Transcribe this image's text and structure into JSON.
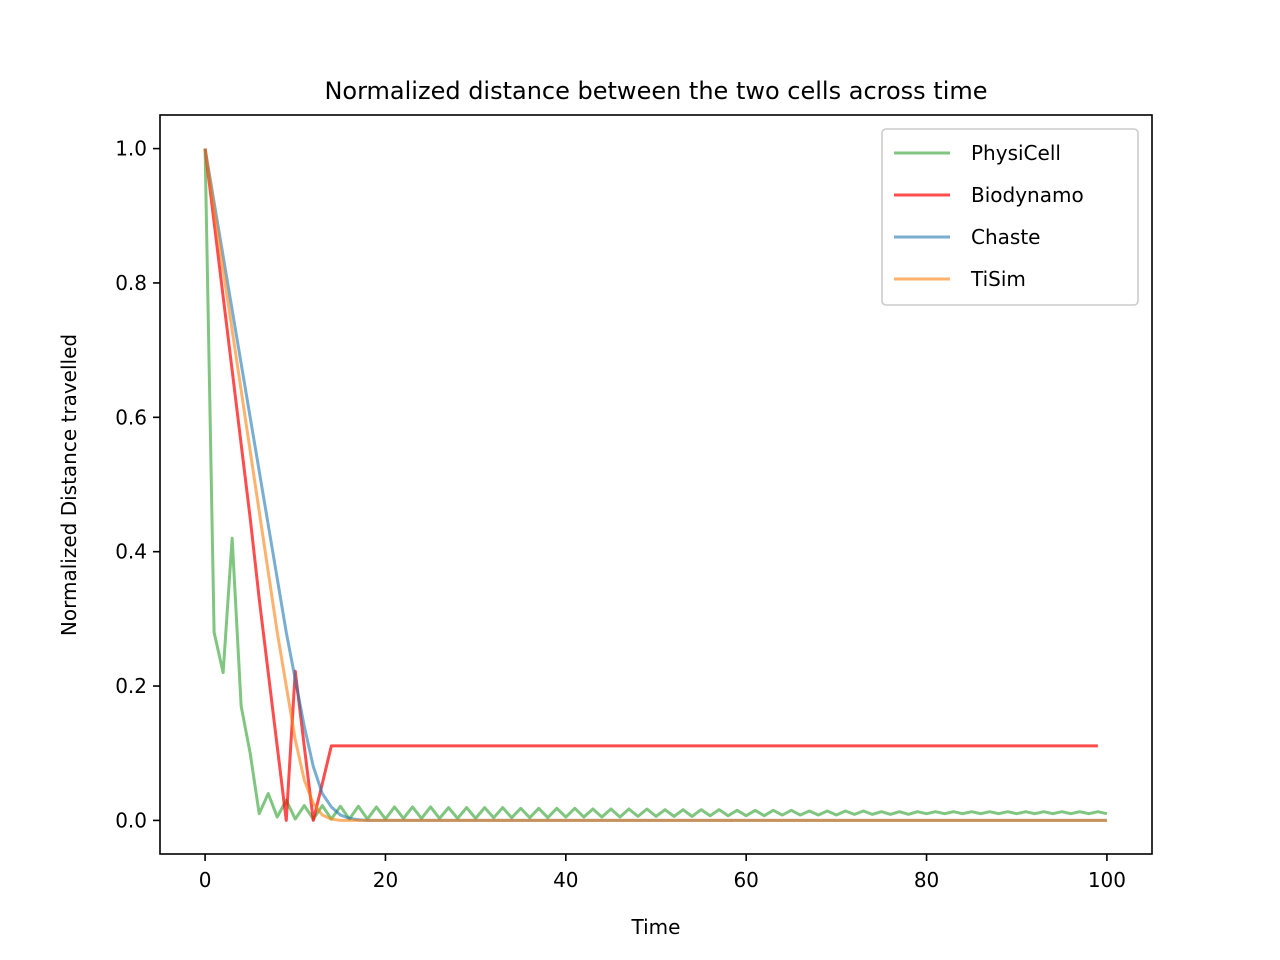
{
  "chart_data": {
    "type": "line",
    "title": "Normalized distance between the two cells across time",
    "xlabel": "Time",
    "ylabel": "Normalized Distance travelled",
    "xlim": [
      -5,
      105
    ],
    "ylim": [
      -0.05,
      1.05
    ],
    "xticks": [
      0,
      20,
      40,
      60,
      80,
      100
    ],
    "yticks": [
      0.0,
      0.2,
      0.4,
      0.6,
      0.8,
      1.0
    ],
    "xtick_labels": [
      "0",
      "20",
      "40",
      "60",
      "80",
      "100"
    ],
    "ytick_labels": [
      "0.0",
      "0.2",
      "0.4",
      "0.6",
      "0.8",
      "1.0"
    ],
    "grid": false,
    "legend_position": "top-right",
    "series": [
      {
        "name": "PhysiCell",
        "color": "#2ca02c",
        "opacity": 0.6,
        "x": [
          0,
          1,
          2,
          3,
          4,
          5,
          6,
          7,
          8,
          9,
          10,
          11,
          12,
          13,
          14,
          15,
          16,
          17,
          18,
          19,
          20,
          21,
          22,
          23,
          24,
          25,
          26,
          27,
          28,
          29,
          30,
          31,
          32,
          33,
          34,
          35,
          36,
          37,
          38,
          39,
          40,
          41,
          42,
          43,
          44,
          45,
          46,
          47,
          48,
          49,
          50,
          51,
          52,
          53,
          54,
          55,
          56,
          57,
          58,
          59,
          60,
          61,
          62,
          63,
          64,
          65,
          66,
          67,
          68,
          69,
          70,
          71,
          72,
          73,
          74,
          75,
          76,
          77,
          78,
          79,
          80,
          81,
          82,
          83,
          84,
          85,
          86,
          87,
          88,
          89,
          90,
          91,
          92,
          93,
          94,
          95,
          96,
          97,
          98,
          99,
          100
        ],
        "y": [
          1.0,
          0.28,
          0.22,
          0.42,
          0.17,
          0.1,
          0.01,
          0.04,
          0.005,
          0.03,
          0.002,
          0.022,
          0.002,
          0.022,
          0.002,
          0.021,
          0.002,
          0.021,
          0.002,
          0.02,
          0.002,
          0.02,
          0.003,
          0.02,
          0.003,
          0.02,
          0.003,
          0.019,
          0.003,
          0.019,
          0.003,
          0.019,
          0.004,
          0.019,
          0.004,
          0.018,
          0.004,
          0.018,
          0.004,
          0.018,
          0.005,
          0.018,
          0.005,
          0.017,
          0.005,
          0.017,
          0.005,
          0.017,
          0.006,
          0.017,
          0.006,
          0.016,
          0.006,
          0.016,
          0.006,
          0.016,
          0.007,
          0.016,
          0.007,
          0.015,
          0.007,
          0.015,
          0.007,
          0.015,
          0.008,
          0.015,
          0.008,
          0.014,
          0.008,
          0.014,
          0.008,
          0.014,
          0.009,
          0.014,
          0.009,
          0.013,
          0.009,
          0.013,
          0.009,
          0.013,
          0.01,
          0.013,
          0.01,
          0.013,
          0.01,
          0.013,
          0.01,
          0.013,
          0.01,
          0.013,
          0.01,
          0.013,
          0.01,
          0.013,
          0.01,
          0.013,
          0.01,
          0.013,
          0.01,
          0.013,
          0.01
        ]
      },
      {
        "name": "Biodynamo",
        "color": "#ff0000",
        "opacity": 0.7,
        "x": [
          0,
          1,
          2,
          3,
          4,
          5,
          6,
          7,
          8,
          9,
          10,
          11,
          12,
          13,
          14,
          15,
          20,
          30,
          40,
          50,
          60,
          70,
          80,
          90,
          99
        ],
        "y": [
          1.0,
          0.89,
          0.78,
          0.67,
          0.56,
          0.45,
          0.33,
          0.22,
          0.11,
          0.0,
          0.222,
          0.11,
          0.0,
          0.055,
          0.111,
          0.111,
          0.111,
          0.111,
          0.111,
          0.111,
          0.111,
          0.111,
          0.111,
          0.111,
          0.111
        ]
      },
      {
        "name": "Chaste",
        "color": "#1f77b4",
        "opacity": 0.6,
        "x": [
          0,
          1,
          2,
          3,
          4,
          5,
          6,
          7,
          8,
          9,
          10,
          11,
          12,
          13,
          14,
          15,
          16,
          17,
          18,
          19,
          20,
          22,
          25,
          30,
          40,
          50,
          60,
          70,
          80,
          90,
          100
        ],
        "y": [
          1.0,
          0.92,
          0.84,
          0.76,
          0.68,
          0.6,
          0.52,
          0.44,
          0.36,
          0.28,
          0.21,
          0.14,
          0.08,
          0.04,
          0.02,
          0.008,
          0.003,
          0.001,
          0.0,
          0.0,
          0.0,
          0.0,
          0.0,
          0.0,
          0.0,
          0.0,
          0.0,
          0.0,
          0.0,
          0.0,
          0.0
        ]
      },
      {
        "name": "TiSim",
        "color": "#ff7f0e",
        "opacity": 0.6,
        "x": [
          0,
          1,
          2,
          3,
          4,
          5,
          6,
          7,
          8,
          9,
          10,
          11,
          12,
          13,
          14,
          15,
          16,
          17,
          18,
          19,
          20,
          22,
          25,
          30,
          40,
          50,
          60,
          70,
          80,
          90,
          100
        ],
        "y": [
          1.0,
          0.91,
          0.82,
          0.73,
          0.64,
          0.55,
          0.46,
          0.37,
          0.28,
          0.2,
          0.12,
          0.06,
          0.025,
          0.008,
          0.002,
          0.0,
          0.0,
          0.0,
          0.0,
          0.0,
          0.0,
          0.0,
          0.0,
          0.0,
          0.0,
          0.0,
          0.0,
          0.0,
          0.0,
          0.0,
          0.0
        ]
      }
    ]
  }
}
